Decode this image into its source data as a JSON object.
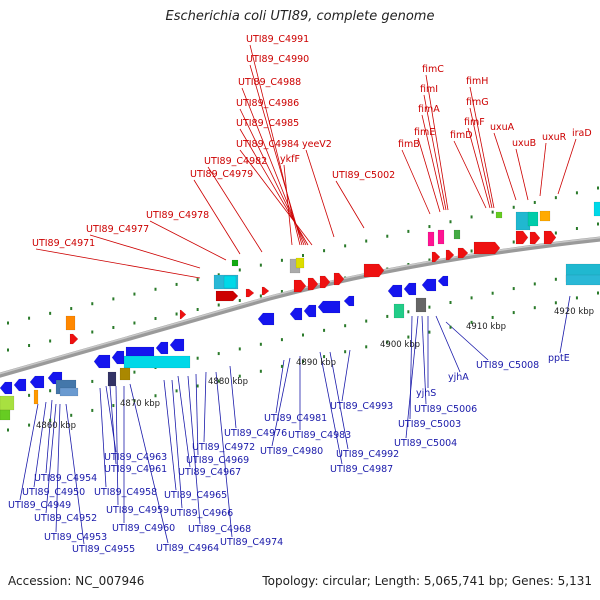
{
  "title": "Escherichia coli UTI89, complete genome",
  "footer": {
    "accession": "Accession: NC_007946",
    "summary": "Topology: circular; Length: 5,065,741 bp; Genes: 5,131"
  },
  "colors": {
    "top_label": "#cc0000",
    "bottom_label": "#1a1aaa",
    "backbone": "#8a8a8a",
    "tick": "#2a7a2a"
  },
  "kbp_marks": [
    "4860 kbp",
    "4870 kbp",
    "4880 kbp",
    "4890 kbp",
    "4900 kbp",
    "4910 kbp",
    "4920 kbp"
  ],
  "top_labels": [
    "UTI89_C4991",
    "UTI89_C4990",
    "UTI89_C4988",
    "UTI89_C4986",
    "UTI89_C4985",
    "UTI89_C4984",
    "yeeV2",
    "ykfF",
    "UTI89_C4982",
    "UTI89_C4979",
    "UTI89_C5002",
    "UTI89_C4978",
    "UTI89_C4977",
    "UTI89_C4971",
    "fimC",
    "fimI",
    "fimA",
    "fimE",
    "fimB",
    "fimH",
    "fimG",
    "fimF",
    "fimD",
    "uxuA",
    "uxuB",
    "uxuR",
    "iraD"
  ],
  "bottom_labels": [
    "UTI89_C4954",
    "UTI89_C4950",
    "UTI89_C4949",
    "UTI89_C4952",
    "UTI89_C4953",
    "UTI89_C4955",
    "UTI89_C4963",
    "UTI89_C4961",
    "UTI89_C4958",
    "UTI89_C4959",
    "UTI89_C4960",
    "UTI89_C4964",
    "UTI89_C4965",
    "UTI89_C4966",
    "UTI89_C4967",
    "UTI89_C4968",
    "UTI89_C4969",
    "UTI89_C4972",
    "UTI89_C4974",
    "UTI89_C4976",
    "UTI89_C4981",
    "UTI89_C4980",
    "UTI89_C4983",
    "UTI89_C4987",
    "UTI89_C4992",
    "UTI89_C4993",
    "UTI89_C5003",
    "UTI89_C5004",
    "UTI89_C5006",
    "yjhS",
    "yjhA",
    "UTI89_C5008",
    "pptE"
  ]
}
